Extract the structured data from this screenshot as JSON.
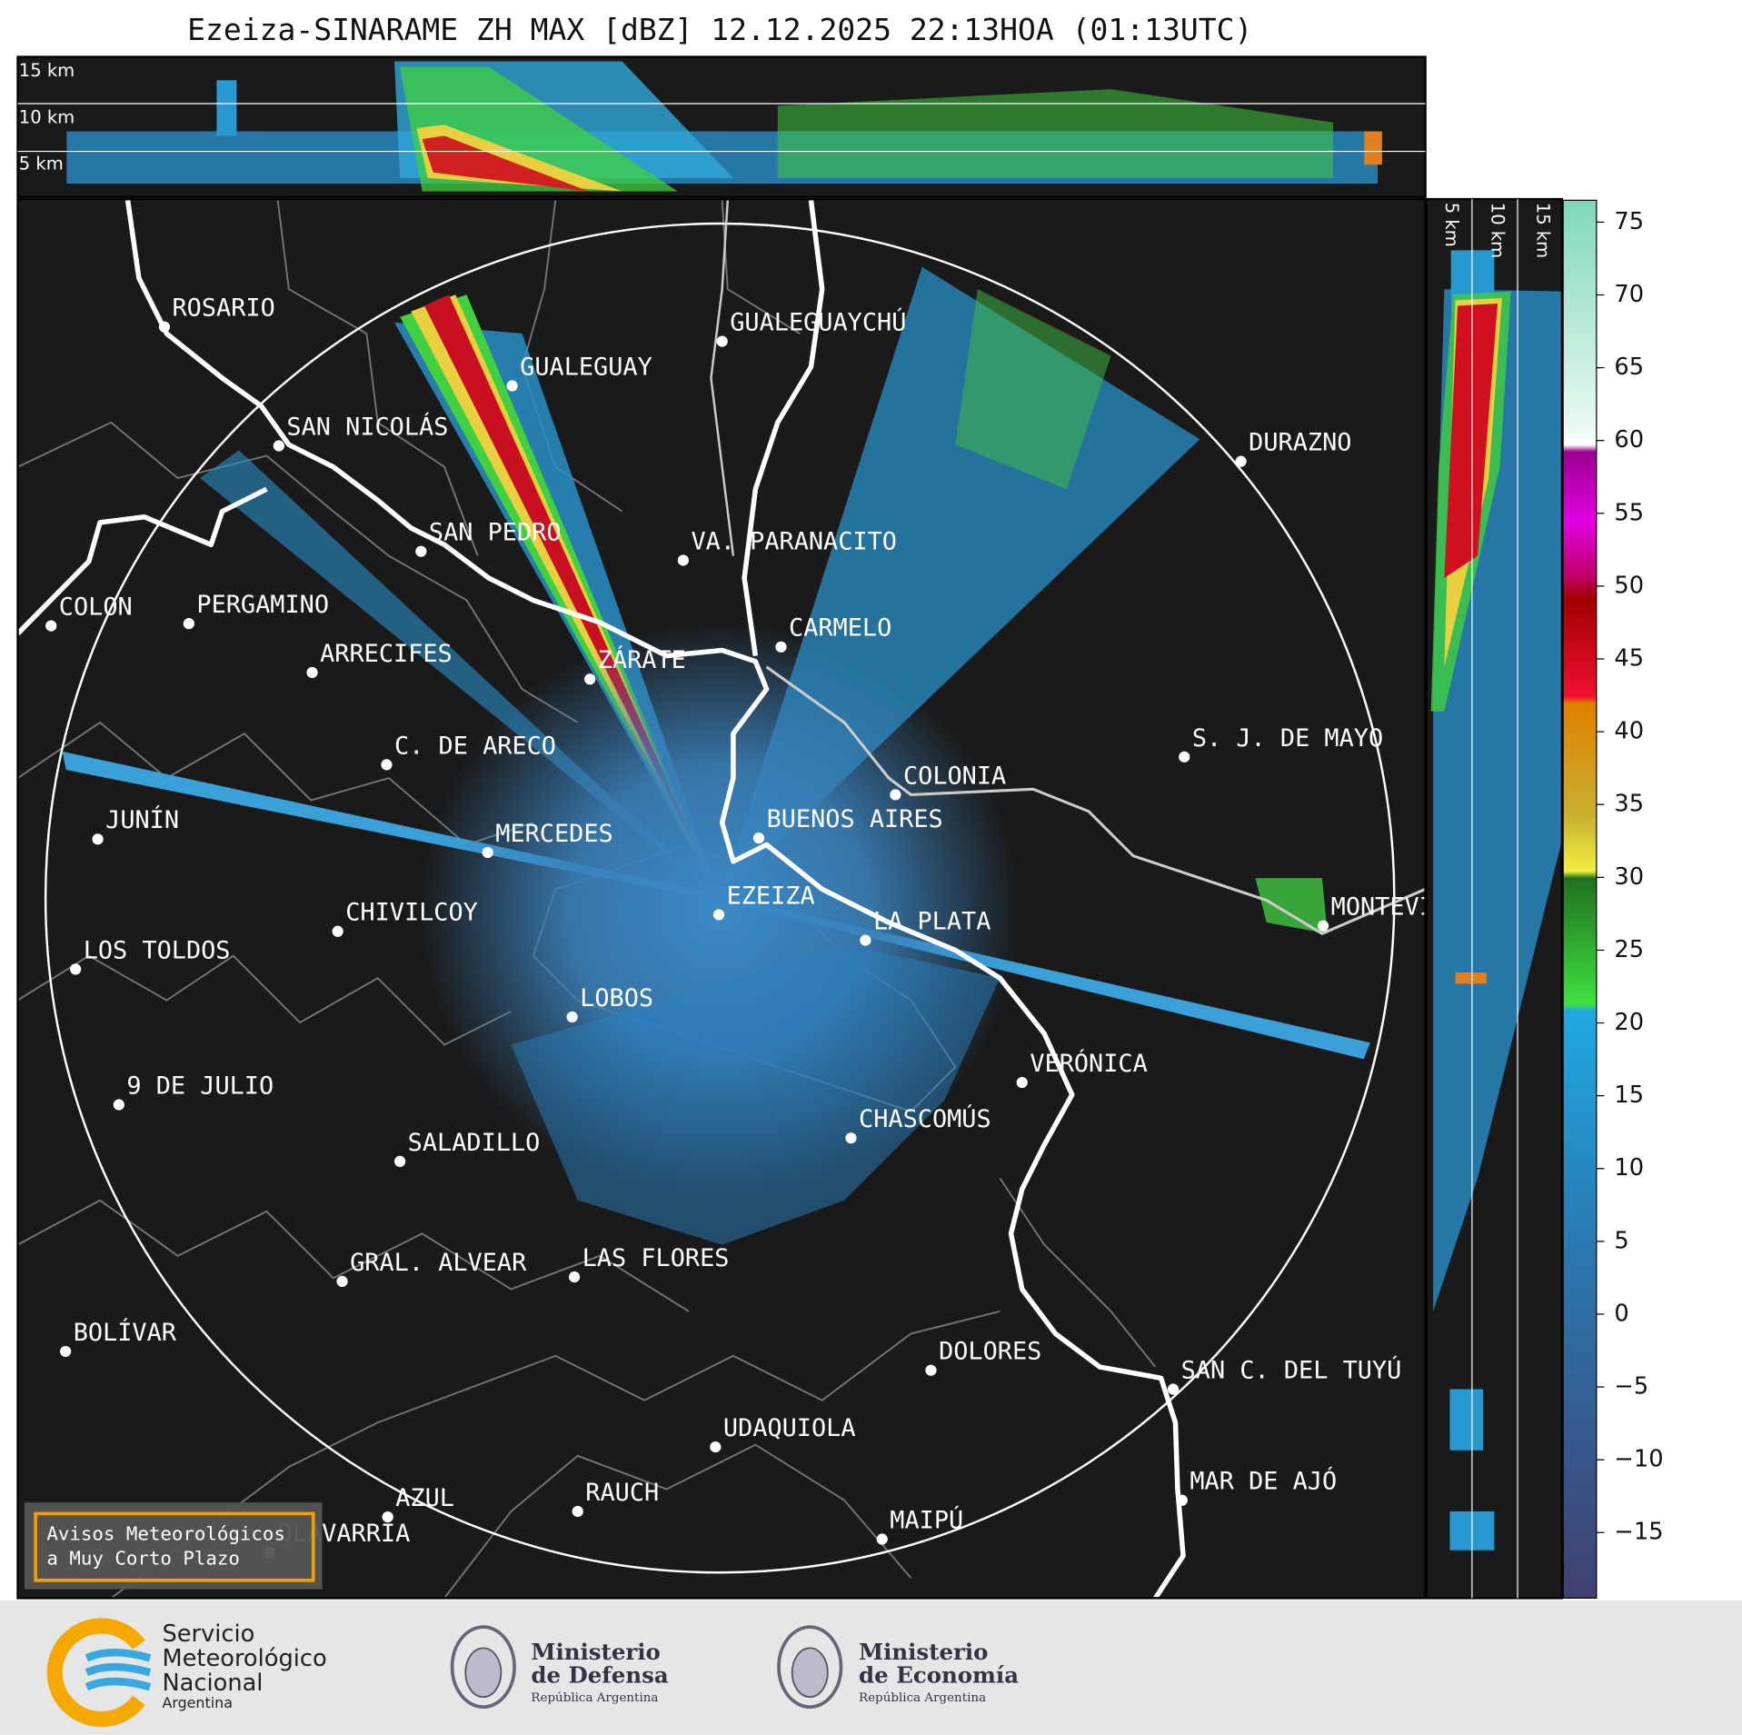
{
  "title": "Ezeiza-SINARAME ZH MAX [dBZ] 12.12.2025 22:13HOA (01:13UTC)",
  "top_panel": {
    "labels": [
      "15 km",
      "10 km",
      "5 km"
    ]
  },
  "side_panel": {
    "labels": [
      "5 km",
      "10 km",
      "15 km"
    ]
  },
  "cities": [
    "ROSARIO",
    "GUALEGUAYCHÚ",
    "GUALEGUAY",
    "SAN NICOLÁS",
    "DURAZNO",
    "SAN PEDRO",
    "VA. PARANACITO",
    "COLON",
    "PERGAMINO",
    "CARMELO",
    "ARRECIFES",
    "ZÁRATE",
    "S. J. DE MAYO",
    "C. DE ARECO",
    "COLONIA",
    "JUNÍN",
    "BUENOS AIRES",
    "MERCEDES",
    "EZEIZA",
    "MONTEVIDEO",
    "CHIVILCOY",
    "LA PLATA",
    "LOS TOLDOS",
    "LOBOS",
    "VERÓNICA",
    "9 DE JULIO",
    "CHASCOMÚS",
    "SALADILLO",
    "GRAL. ALVEAR",
    "LAS FLORES",
    "BOLÍVAR",
    "DOLORES",
    "SAN C. DEL TUYÚ",
    "UDAQUIOLA",
    "MAR DE AJÓ",
    "RAUCH",
    "AZUL",
    "OLAVARRÍA",
    "MAIPÚ"
  ],
  "warning_box": [
    "Avisos Meteorológicos",
    "a Muy Corto Plazo"
  ],
  "colorbar": {
    "clim": [
      -19.5,
      76.5
    ],
    "ticks": [
      75,
      70,
      65,
      60,
      55,
      50,
      45,
      40,
      35,
      30,
      25,
      20,
      15,
      10,
      5,
      0,
      {
        "value": -5,
        "label": "−5"
      },
      {
        "value": -10,
        "label": "−10"
      },
      {
        "value": -15,
        "label": "−15"
      }
    ]
  },
  "logos": {
    "smn": [
      "Servicio",
      "Meteorológico",
      "Nacional",
      "Argentina"
    ],
    "defensa": [
      "Ministerio",
      "de Defensa",
      "República Argentina"
    ],
    "economia": [
      "Ministerio",
      "de Economía",
      "República Argentina"
    ]
  }
}
